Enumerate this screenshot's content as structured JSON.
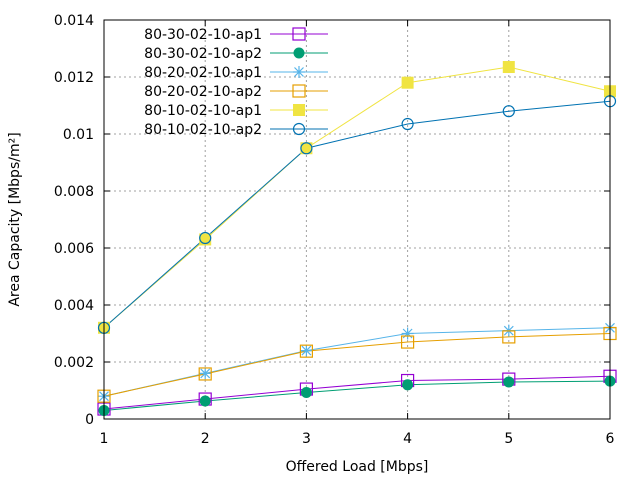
{
  "chart_data": {
    "type": "line",
    "title": "",
    "xlabel": "Offered Load [Mbps]",
    "ylabel": "Area Capacity [Mbps/m²]",
    "xlim": [
      1,
      6
    ],
    "ylim": [
      0,
      0.014
    ],
    "grid": true,
    "legend_position": "top-left",
    "x_ticks": [
      "1",
      "2",
      "3",
      "4",
      "5",
      "6"
    ],
    "y_ticks": [
      "0",
      "0.002",
      "0.004",
      "0.006",
      "0.008",
      "0.01",
      "0.012",
      "0.014"
    ],
    "x": [
      1,
      2,
      3,
      4,
      5,
      6
    ],
    "series": [
      {
        "name": "80-30-02-10-ap1",
        "color": "#9400d3",
        "marker": "open-square",
        "values": [
          0.00035,
          0.0007,
          0.00105,
          0.00135,
          0.0014,
          0.0015
        ]
      },
      {
        "name": "80-30-02-10-ap2",
        "color": "#009e73",
        "marker": "filled-circle",
        "values": [
          0.0003,
          0.00063,
          0.00093,
          0.0012,
          0.0013,
          0.00133
        ]
      },
      {
        "name": "80-20-02-10-ap1",
        "color": "#56b4e9",
        "marker": "asterisk",
        "values": [
          0.0008,
          0.0016,
          0.0024,
          0.003,
          0.0031,
          0.0032
        ]
      },
      {
        "name": "80-20-02-10-ap2",
        "color": "#e69f00",
        "marker": "open-square",
        "values": [
          0.0008,
          0.00158,
          0.00238,
          0.0027,
          0.00288,
          0.003
        ]
      },
      {
        "name": "80-10-02-10-ap1",
        "color": "#f0e442",
        "marker": "filled-square",
        "values": [
          0.0032,
          0.0063,
          0.0095,
          0.0118,
          0.01235,
          0.0115
        ]
      },
      {
        "name": "80-10-02-10-ap2",
        "color": "#0072b2",
        "marker": "open-circle",
        "values": [
          0.0032,
          0.00635,
          0.0095,
          0.01035,
          0.0108,
          0.01115
        ]
      }
    ]
  }
}
